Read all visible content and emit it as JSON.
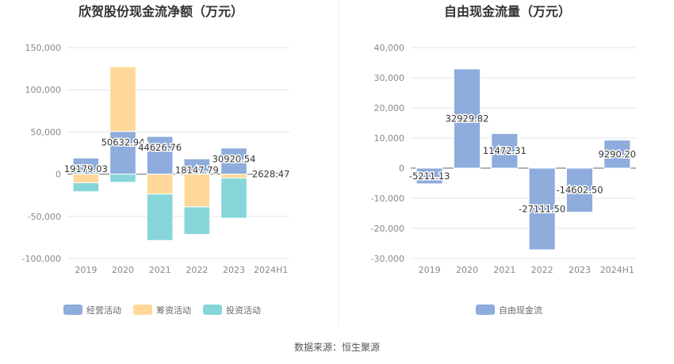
{
  "chart_data": [
    {
      "type": "bar",
      "stacked": true,
      "title": "欣贺股份现金流净额（万元）",
      "categories": [
        "2019",
        "2020",
        "2021",
        "2022",
        "2023",
        "2024H1"
      ],
      "ylim": [
        -100000,
        150000
      ],
      "yticks": [
        150000,
        100000,
        50000,
        0,
        -50000,
        -100000
      ],
      "ytick_labels": [
        "150,000",
        "100,000",
        "50,000",
        "0",
        "-50,000",
        "-100,000"
      ],
      "grid": true,
      "legend": "bottom",
      "series": [
        {
          "name": "经营活动",
          "color": "#8eacdc",
          "values": [
            19179.03,
            50632.94,
            44626.76,
            18147.79,
            30920.54,
            2628.47
          ]
        },
        {
          "name": "筹资活动",
          "color": "#ffd899",
          "values": [
            -10250,
            76700,
            -23600,
            -38800,
            -4660,
            -300
          ]
        },
        {
          "name": "投资活动",
          "color": "#86d6d9",
          "values": [
            -10550,
            -9630,
            -55000,
            -32600,
            -47500,
            800
          ]
        }
      ],
      "data_labels": [
        "19179.03",
        "50632.94",
        "44626.76",
        "18147.79",
        "30920.54",
        "2628.47"
      ]
    },
    {
      "type": "bar",
      "title": "自由现金流量（万元）",
      "categories": [
        "2019",
        "2020",
        "2021",
        "2022",
        "2023",
        "2024H1"
      ],
      "ylim": [
        -30000,
        40000
      ],
      "yticks": [
        40000,
        30000,
        20000,
        10000,
        0,
        -10000,
        -20000,
        -30000
      ],
      "ytick_labels": [
        "40,000",
        "30,000",
        "20,000",
        "10,000",
        "0",
        "-10,000",
        "-20,000",
        "-30,000"
      ],
      "grid": true,
      "legend": "bottom",
      "series": [
        {
          "name": "自由现金流",
          "color": "#8eacdc",
          "values": [
            -5211.13,
            32929.82,
            11472.31,
            -27111.5,
            -14602.5,
            9290.2
          ]
        }
      ],
      "data_labels": [
        "-5211.13",
        "32929.82",
        "11472.31",
        "-27111.50",
        "-14602.50",
        "9290.20"
      ]
    }
  ],
  "source": "数据来源：恒生聚源"
}
